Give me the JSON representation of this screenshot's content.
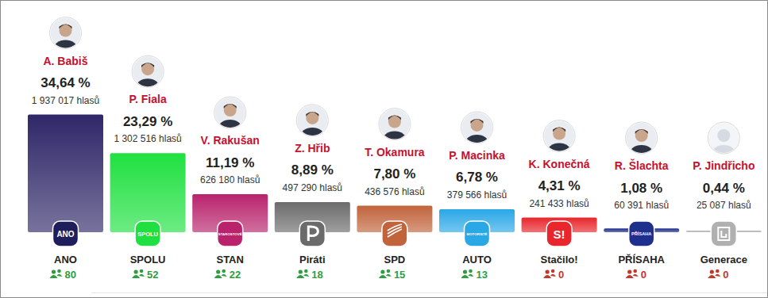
{
  "chart_data": {
    "type": "bar",
    "categories": [
      "ANO",
      "SPOLU",
      "STAN",
      "Piráti",
      "SPD",
      "AUTO",
      "Stačilo!",
      "PŘÍSAHA",
      "Generace"
    ],
    "values": [
      34.64,
      23.29,
      11.19,
      8.89,
      7.8,
      6.78,
      4.31,
      1.08,
      0.44
    ],
    "value_labels": [
      "34,64 %",
      "23,29 %",
      "11,19 %",
      "8,89 %",
      "7,80 %",
      "6,78 %",
      "4,31 %",
      "1,08 %",
      "0,44 %"
    ],
    "colors": [
      "#2f2768",
      "#1fe040",
      "#b8236c",
      "#6b6b6b",
      "#c1643c",
      "#2aa8e6",
      "#e8262b",
      "#1f2f8c",
      "#b0b0b0"
    ],
    "leaders": [
      "A. Babiš",
      "P. Fiala",
      "V. Rakušan",
      "Z. Hřib",
      "T. Okamura",
      "P. Macinka",
      "K. Konečná",
      "R. Šlachta",
      "P. Jindřicho"
    ],
    "votes": [
      "1 937 017 hlasů",
      "1 302 516 hlasů",
      "626 180 hlasů",
      "497 290 hlasů",
      "436 576 hlasů",
      "379 566 hlasů",
      "241 433 hlasů",
      "60 391 hlasů",
      "25 087 hlasů"
    ],
    "seats": [
      80,
      52,
      22,
      18,
      15,
      13,
      0,
      0,
      0
    ],
    "logos": [
      "ANO",
      "SPOLU",
      "STAROSTOVÉ",
      null,
      null,
      "MOTORISTÉ",
      "S!",
      "PŘÍSAHA",
      null
    ],
    "ylim": [
      0,
      35
    ],
    "yticks": [],
    "tick_labels": "x",
    "data_labels": true
  }
}
